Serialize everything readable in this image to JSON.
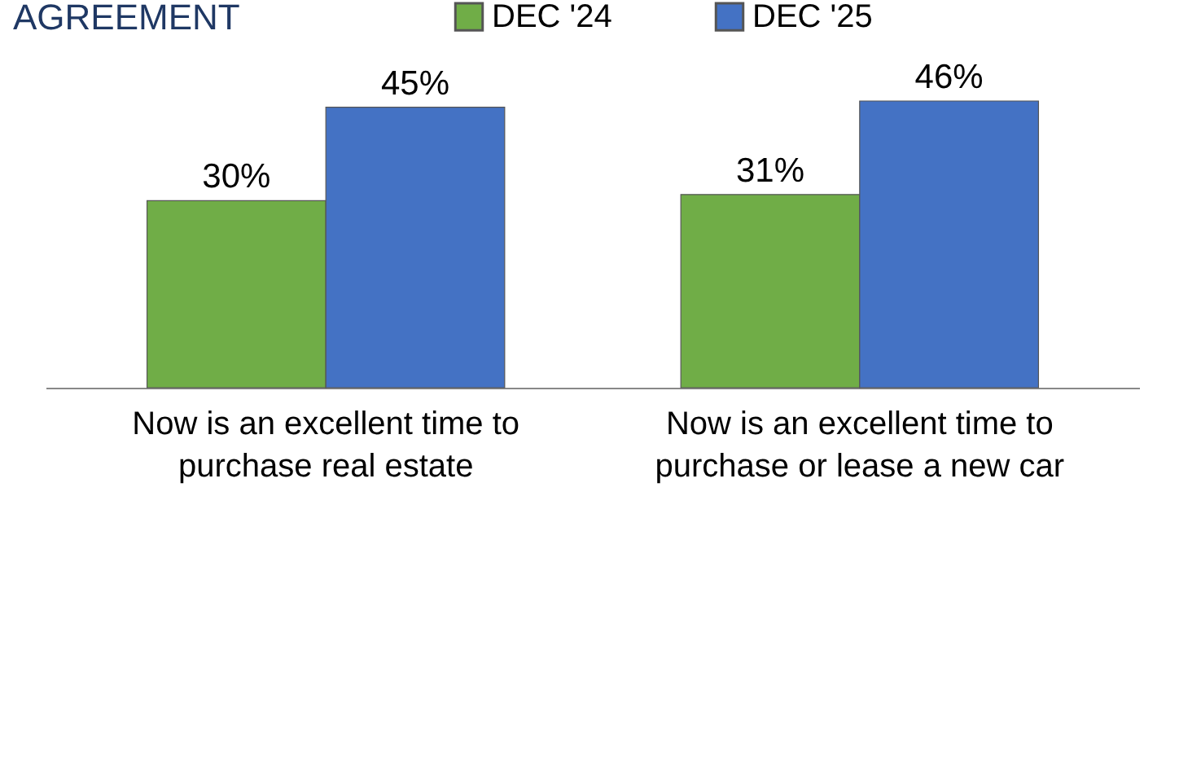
{
  "chart_data": {
    "type": "bar",
    "title": "AGREEMENT",
    "categories": [
      "Now is an excellent time to purchase real estate",
      "Now is an excellent time to purchase or lease a new car"
    ],
    "series": [
      {
        "name": "DEC '24",
        "color": "#70ad47",
        "values": [
          30,
          31
        ],
        "value_labels": [
          "30%",
          "31%"
        ]
      },
      {
        "name": "DEC '25",
        "color": "#4472c4",
        "values": [
          45,
          46
        ],
        "value_labels": [
          "45%",
          "46%"
        ]
      }
    ],
    "tick_labels": "x",
    "legend": "top",
    "grid": false
  }
}
